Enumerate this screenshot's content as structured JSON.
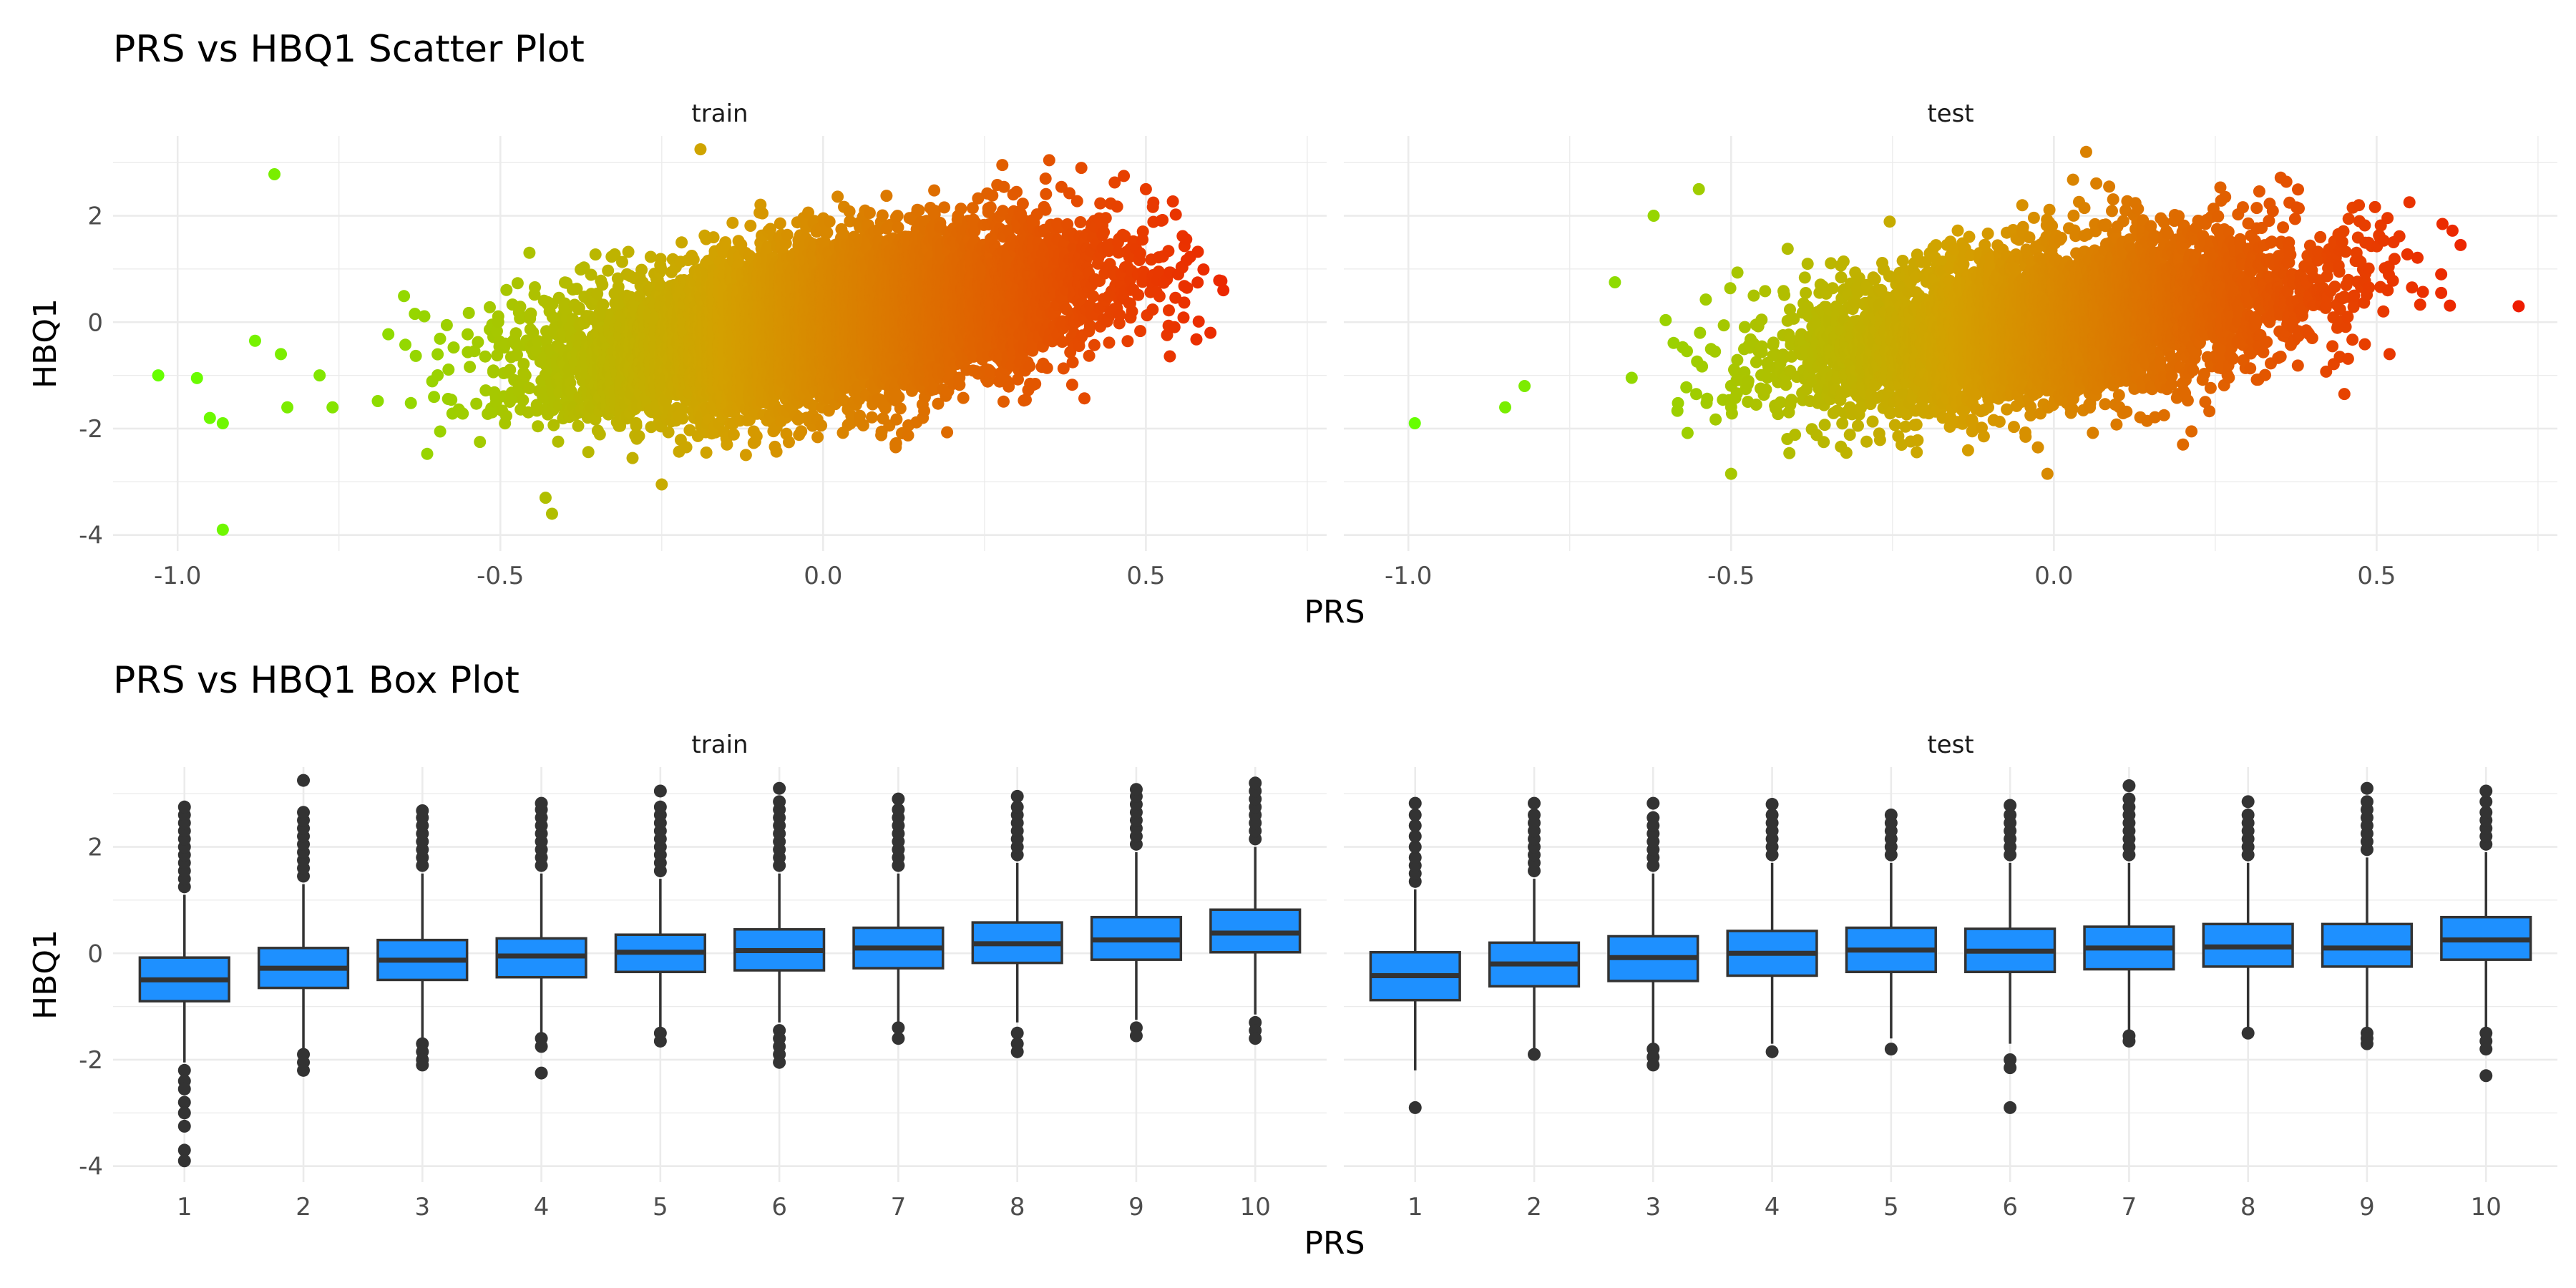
{
  "chart_data": [
    {
      "type": "scatter",
      "title": "PRS vs HBQ1 Scatter Plot",
      "xlabel": "PRS",
      "ylabel": "HBQ1",
      "facets": [
        "train",
        "test"
      ],
      "xlim": [
        -1.1,
        0.78
      ],
      "ylim": [
        -4.3,
        3.5
      ],
      "x_ticks": [
        "-1.0",
        "-0.5",
        "0.0",
        "0.5"
      ],
      "y_ticks": [
        "-4",
        "-2",
        "0",
        "2"
      ],
      "grid": true,
      "color_scale": {
        "low": "#66ff00",
        "mid": "#d4a000",
        "high": "#ee1c00",
        "domain": [
          -1.0,
          0.7
        ]
      },
      "panels": [
        {
          "name": "train",
          "approx_n": 9000,
          "correlation": 0.45,
          "x_mean": 0.0,
          "x_sd": 0.2,
          "y_mean": 0.0,
          "y_sd": 0.8,
          "points": [
            {
              "x": -1.03,
              "y": -1.0
            },
            {
              "x": -0.97,
              "y": -1.05
            },
            {
              "x": -0.95,
              "y": -1.8
            },
            {
              "x": -0.93,
              "y": -1.9
            },
            {
              "x": -0.93,
              "y": -3.9
            },
            {
              "x": -0.88,
              "y": -0.35
            },
            {
              "x": -0.85,
              "y": 2.78
            },
            {
              "x": -0.84,
              "y": -0.6
            },
            {
              "x": -0.83,
              "y": -1.6
            },
            {
              "x": -0.78,
              "y": -1.0
            },
            {
              "x": -0.76,
              "y": -1.6
            },
            {
              "x": -0.43,
              "y": -3.3
            },
            {
              "x": -0.42,
              "y": -3.6
            },
            {
              "x": -0.25,
              "y": -3.05
            },
            {
              "x": -0.19,
              "y": 3.25
            },
            {
              "x": 0.62,
              "y": 0.6
            },
            {
              "x": 0.6,
              "y": -0.2
            },
            {
              "x": 0.55,
              "y": 0.9
            },
            {
              "x": 0.5,
              "y": 2.5
            },
            {
              "x": 0.4,
              "y": 2.9
            }
          ]
        },
        {
          "name": "test",
          "approx_n": 5000,
          "correlation": 0.43,
          "x_mean": 0.0,
          "x_sd": 0.2,
          "y_mean": 0.0,
          "y_sd": 0.8,
          "points": [
            {
              "x": -0.99,
              "y": -1.9
            },
            {
              "x": -0.85,
              "y": -1.6
            },
            {
              "x": -0.82,
              "y": -1.2
            },
            {
              "x": -0.68,
              "y": 0.75
            },
            {
              "x": -0.62,
              "y": 2.0
            },
            {
              "x": -0.55,
              "y": 2.5
            },
            {
              "x": -0.5,
              "y": -2.85
            },
            {
              "x": -0.01,
              "y": -2.85
            },
            {
              "x": 0.2,
              "y": -2.3
            },
            {
              "x": 0.72,
              "y": 0.3
            },
            {
              "x": 0.63,
              "y": 1.45
            },
            {
              "x": 0.6,
              "y": 0.9
            },
            {
              "x": 0.6,
              "y": 0.55
            },
            {
              "x": 0.52,
              "y": -0.6
            },
            {
              "x": 0.45,
              "y": -1.35
            },
            {
              "x": 0.05,
              "y": 3.2
            }
          ]
        }
      ]
    },
    {
      "type": "box",
      "title": "PRS vs HBQ1 Box Plot",
      "xlabel": "PRS",
      "ylabel": "HBQ1",
      "facets": [
        "train",
        "test"
      ],
      "categories": [
        "1",
        "2",
        "3",
        "4",
        "5",
        "6",
        "7",
        "8",
        "9",
        "10"
      ],
      "ylim": [
        -4.3,
        3.5
      ],
      "y_ticks": [
        "-4",
        "-2",
        "0",
        "2"
      ],
      "grid": true,
      "box_color": "#1e90ff",
      "line_color": "#333333",
      "panels": [
        {
          "name": "train",
          "boxes": [
            {
              "q1": -0.9,
              "median": -0.5,
              "q3": -0.08,
              "whisker_low": -2.05,
              "whisker_high": 1.1,
              "outliers": [
                1.25,
                1.4,
                1.55,
                1.7,
                1.85,
                2.0,
                2.15,
                2.3,
                2.45,
                2.6,
                2.75,
                -2.2,
                -2.4,
                -2.55,
                -2.8,
                -3.0,
                -3.25,
                -3.7,
                -3.9
              ]
            },
            {
              "q1": -0.65,
              "median": -0.28,
              "q3": 0.1,
              "whisker_low": -1.8,
              "whisker_high": 1.3,
              "outliers": [
                1.45,
                1.6,
                1.75,
                1.9,
                2.05,
                2.2,
                2.35,
                2.5,
                2.65,
                3.25,
                -1.9,
                -2.05,
                -2.2
              ]
            },
            {
              "q1": -0.5,
              "median": -0.13,
              "q3": 0.25,
              "whisker_low": -1.6,
              "whisker_high": 1.5,
              "outliers": [
                1.65,
                1.8,
                1.95,
                2.1,
                2.25,
                2.4,
                2.55,
                2.68,
                -1.7,
                -1.85,
                -2.0,
                -2.1
              ]
            },
            {
              "q1": -0.45,
              "median": -0.05,
              "q3": 0.28,
              "whisker_low": -1.5,
              "whisker_high": 1.5,
              "outliers": [
                1.65,
                1.8,
                1.95,
                2.1,
                2.25,
                2.4,
                2.55,
                2.7,
                2.82,
                -1.6,
                -1.75,
                -2.25
              ]
            },
            {
              "q1": -0.35,
              "median": 0.02,
              "q3": 0.35,
              "whisker_low": -1.4,
              "whisker_high": 1.4,
              "outliers": [
                1.55,
                1.7,
                1.85,
                2.0,
                2.15,
                2.3,
                2.45,
                2.6,
                2.75,
                3.05,
                -1.5,
                -1.65
              ]
            },
            {
              "q1": -0.32,
              "median": 0.05,
              "q3": 0.45,
              "whisker_low": -1.3,
              "whisker_high": 1.5,
              "outliers": [
                1.65,
                1.8,
                1.95,
                2.1,
                2.25,
                2.4,
                2.55,
                2.7,
                2.85,
                3.1,
                -1.45,
                -1.6,
                -1.75,
                -1.9,
                -2.05
              ]
            },
            {
              "q1": -0.28,
              "median": 0.1,
              "q3": 0.48,
              "whisker_low": -1.3,
              "whisker_high": 1.5,
              "outliers": [
                1.65,
                1.8,
                1.95,
                2.1,
                2.25,
                2.4,
                2.55,
                2.7,
                2.9,
                -1.4,
                -1.6
              ]
            },
            {
              "q1": -0.18,
              "median": 0.18,
              "q3": 0.58,
              "whisker_low": -1.3,
              "whisker_high": 1.7,
              "outliers": [
                1.85,
                2.0,
                2.15,
                2.3,
                2.45,
                2.6,
                2.75,
                2.95,
                -1.5,
                -1.7,
                -1.85
              ]
            },
            {
              "q1": -0.12,
              "median": 0.25,
              "q3": 0.68,
              "whisker_low": -1.25,
              "whisker_high": 1.9,
              "outliers": [
                2.05,
                2.2,
                2.35,
                2.5,
                2.65,
                2.8,
                2.95,
                3.08,
                -1.4,
                -1.55
              ]
            },
            {
              "q1": 0.02,
              "median": 0.38,
              "q3": 0.82,
              "whisker_low": -1.15,
              "whisker_high": 2.0,
              "outliers": [
                2.15,
                2.3,
                2.45,
                2.6,
                2.75,
                2.9,
                3.05,
                3.2,
                -1.3,
                -1.45,
                -1.6
              ]
            }
          ]
        },
        {
          "name": "test",
          "boxes": [
            {
              "q1": -0.88,
              "median": -0.42,
              "q3": 0.02,
              "whisker_low": -2.2,
              "whisker_high": 1.2,
              "outliers": [
                1.35,
                1.5,
                1.65,
                1.8,
                2.0,
                2.2,
                2.4,
                2.6,
                2.82,
                -2.9
              ]
            },
            {
              "q1": -0.62,
              "median": -0.2,
              "q3": 0.2,
              "whisker_low": -1.8,
              "whisker_high": 1.4,
              "outliers": [
                1.55,
                1.7,
                1.85,
                2.0,
                2.15,
                2.3,
                2.45,
                2.6,
                2.82,
                -1.9
              ]
            },
            {
              "q1": -0.52,
              "median": -0.08,
              "q3": 0.32,
              "whisker_low": -1.7,
              "whisker_high": 1.5,
              "outliers": [
                1.65,
                1.8,
                1.95,
                2.1,
                2.25,
                2.4,
                2.55,
                2.82,
                -1.8,
                -1.95,
                -2.1
              ]
            },
            {
              "q1": -0.42,
              "median": 0.0,
              "q3": 0.42,
              "whisker_low": -1.7,
              "whisker_high": 1.7,
              "outliers": [
                1.85,
                2.0,
                2.15,
                2.3,
                2.45,
                2.6,
                2.8,
                -1.85
              ]
            },
            {
              "q1": -0.35,
              "median": 0.06,
              "q3": 0.48,
              "whisker_low": -1.6,
              "whisker_high": 1.7,
              "outliers": [
                1.85,
                2.0,
                2.15,
                2.3,
                2.45,
                2.6,
                -1.8
              ]
            },
            {
              "q1": -0.35,
              "median": 0.04,
              "q3": 0.46,
              "whisker_low": -1.7,
              "whisker_high": 1.7,
              "outliers": [
                1.85,
                2.0,
                2.15,
                2.3,
                2.45,
                2.6,
                2.78,
                -2.0,
                -2.15,
                -2.9
              ]
            },
            {
              "q1": -0.3,
              "median": 0.1,
              "q3": 0.5,
              "whisker_low": -1.5,
              "whisker_high": 1.7,
              "outliers": [
                1.85,
                2.0,
                2.15,
                2.3,
                2.45,
                2.6,
                2.75,
                2.9,
                3.15,
                -1.55,
                -1.65
              ]
            },
            {
              "q1": -0.25,
              "median": 0.12,
              "q3": 0.55,
              "whisker_low": -1.4,
              "whisker_high": 1.7,
              "outliers": [
                1.85,
                2.0,
                2.15,
                2.3,
                2.45,
                2.6,
                2.85,
                -1.5
              ]
            },
            {
              "q1": -0.25,
              "median": 0.1,
              "q3": 0.55,
              "whisker_low": -1.4,
              "whisker_high": 1.8,
              "outliers": [
                1.95,
                2.1,
                2.25,
                2.4,
                2.55,
                2.7,
                2.85,
                3.1,
                -1.5,
                -1.6,
                -1.7
              ]
            },
            {
              "q1": -0.12,
              "median": 0.25,
              "q3": 0.68,
              "whisker_low": -1.4,
              "whisker_high": 1.9,
              "outliers": [
                2.05,
                2.2,
                2.35,
                2.5,
                2.65,
                2.85,
                3.05,
                -1.5,
                -1.65,
                -1.8,
                -2.3
              ]
            }
          ]
        }
      ]
    }
  ]
}
